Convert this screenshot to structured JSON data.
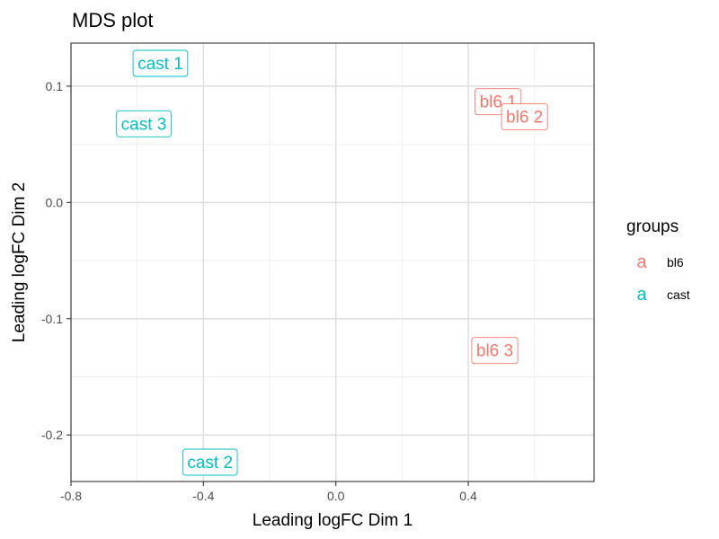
{
  "chart_data": {
    "type": "scatter",
    "title": "MDS plot",
    "xlabel": "Leading logFC Dim 1",
    "ylabel": "Leading logFC Dim 2",
    "xlim": [
      -0.8,
      0.78
    ],
    "ylim": [
      -0.24,
      0.137
    ],
    "x_ticks": [
      -0.8,
      -0.4,
      0.0,
      0.4
    ],
    "x_tick_labels": [
      "-0.8",
      "-0.4",
      "0.0",
      "0.4"
    ],
    "y_ticks": [
      -0.2,
      -0.1,
      0.0,
      0.1
    ],
    "y_tick_labels": [
      "-0.2",
      "-0.1",
      "0.0",
      "0.1"
    ],
    "grid": true,
    "legend": {
      "title": "groups",
      "position": "right",
      "key_glyph": "a",
      "entries": [
        {
          "name": "bl6",
          "color": "#F8766D"
        },
        {
          "name": "cast",
          "color": "#00BFC4"
        }
      ]
    },
    "points": [
      {
        "label": "cast 1",
        "group": "cast",
        "x": -0.53,
        "y": 0.12
      },
      {
        "label": "cast 3",
        "group": "cast",
        "x": -0.58,
        "y": 0.068
      },
      {
        "label": "cast 2",
        "group": "cast",
        "x": -0.38,
        "y": -0.223
      },
      {
        "label": "bl6 1",
        "group": "bl6",
        "x": 0.49,
        "y": 0.087
      },
      {
        "label": "bl6 2",
        "group": "bl6",
        "x": 0.57,
        "y": 0.074
      },
      {
        "label": "bl6 3",
        "group": "bl6",
        "x": 0.48,
        "y": -0.127
      }
    ]
  }
}
